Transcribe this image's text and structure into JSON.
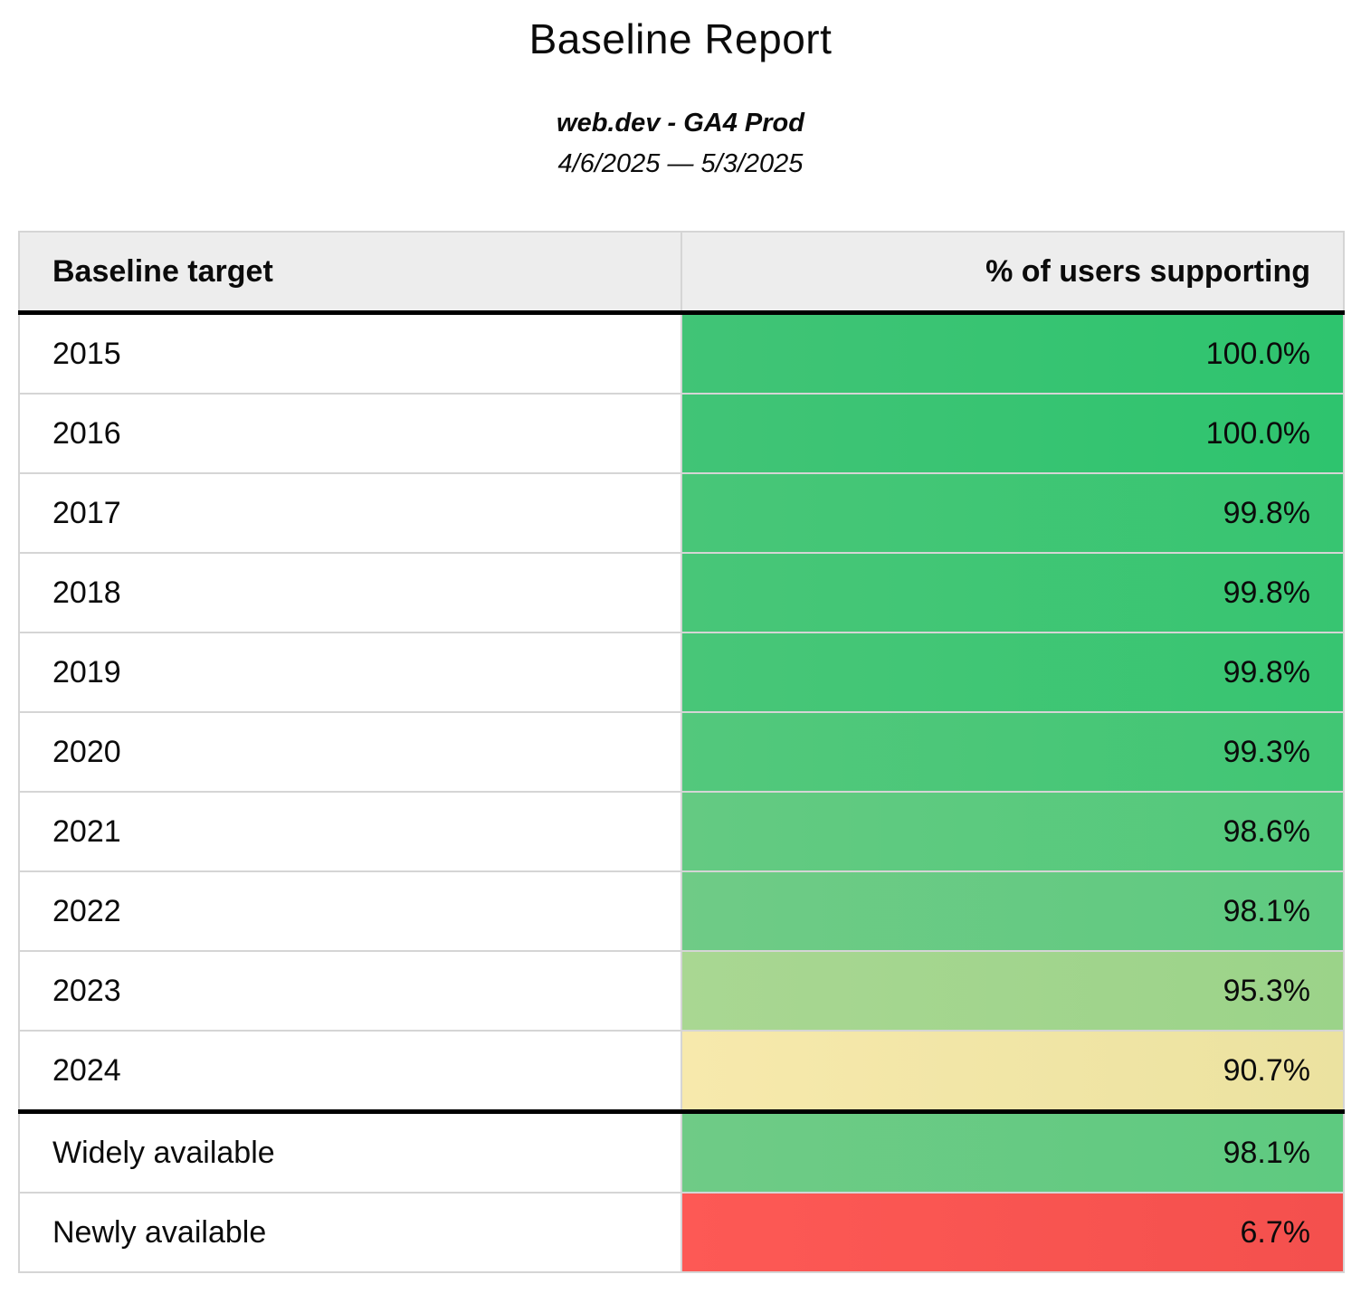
{
  "title": "Baseline Report",
  "subtitle": "web.dev - GA4 Prod",
  "date_range": "4/6/2025 — 5/3/2025",
  "colors": {
    "header_background": "#ededed",
    "grid_line": "#d5d5d5",
    "section_divider": "#000000",
    "green_full": "#2ec46e",
    "green_pale": "#9bd389",
    "yellow": "#f0e5a6",
    "red": "#f85450"
  },
  "table": {
    "columns": [
      "Baseline target",
      "% of users supporting"
    ],
    "rows": [
      {
        "label": "2015",
        "value": "100.0%",
        "color_left": "#41c476",
        "color_right": "#2ec46e",
        "section_start": false
      },
      {
        "label": "2016",
        "value": "100.0%",
        "color_left": "#41c476",
        "color_right": "#2ec46e",
        "section_start": false
      },
      {
        "label": "2017",
        "value": "99.8%",
        "color_left": "#48c678",
        "color_right": "#37c571",
        "section_start": false
      },
      {
        "label": "2018",
        "value": "99.8%",
        "color_left": "#48c678",
        "color_right": "#37c571",
        "section_start": false
      },
      {
        "label": "2019",
        "value": "99.8%",
        "color_left": "#48c678",
        "color_right": "#37c571",
        "section_start": false
      },
      {
        "label": "2020",
        "value": "99.3%",
        "color_left": "#53c87c",
        "color_right": "#41c674",
        "section_start": false
      },
      {
        "label": "2021",
        "value": "98.6%",
        "color_left": "#64ca82",
        "color_right": "#52c97b",
        "section_start": false
      },
      {
        "label": "2022",
        "value": "98.1%",
        "color_left": "#6fcb86",
        "color_right": "#5eca80",
        "section_start": false
      },
      {
        "label": "2023",
        "value": "95.3%",
        "color_left": "#a9d792",
        "color_right": "#9bd389",
        "section_start": false
      },
      {
        "label": "2024",
        "value": "90.7%",
        "color_left": "#f7e9ac",
        "color_right": "#ebe2a0",
        "section_start": false
      },
      {
        "label": "Widely available",
        "value": "98.1%",
        "color_left": "#6fcb86",
        "color_right": "#5eca80",
        "section_start": true
      },
      {
        "label": "Newly available",
        "value": "6.7%",
        "color_left": "#fd5955",
        "color_right": "#f4504d",
        "section_start": false
      }
    ]
  },
  "chart_data": {
    "type": "table",
    "title": "Baseline Report",
    "subtitle": "web.dev - GA4 Prod",
    "date_range": "4/6/2025 — 5/3/2025",
    "columns": [
      "Baseline target",
      "% of users supporting"
    ],
    "categories": [
      "2015",
      "2016",
      "2017",
      "2018",
      "2019",
      "2020",
      "2021",
      "2022",
      "2023",
      "2024",
      "Widely available",
      "Newly available"
    ],
    "values_pct": [
      100.0,
      100.0,
      99.8,
      99.8,
      99.8,
      99.3,
      98.6,
      98.1,
      95.3,
      90.7,
      98.1,
      6.7
    ],
    "color_scale": "green (high) → yellow (~90%) → red (low)"
  }
}
